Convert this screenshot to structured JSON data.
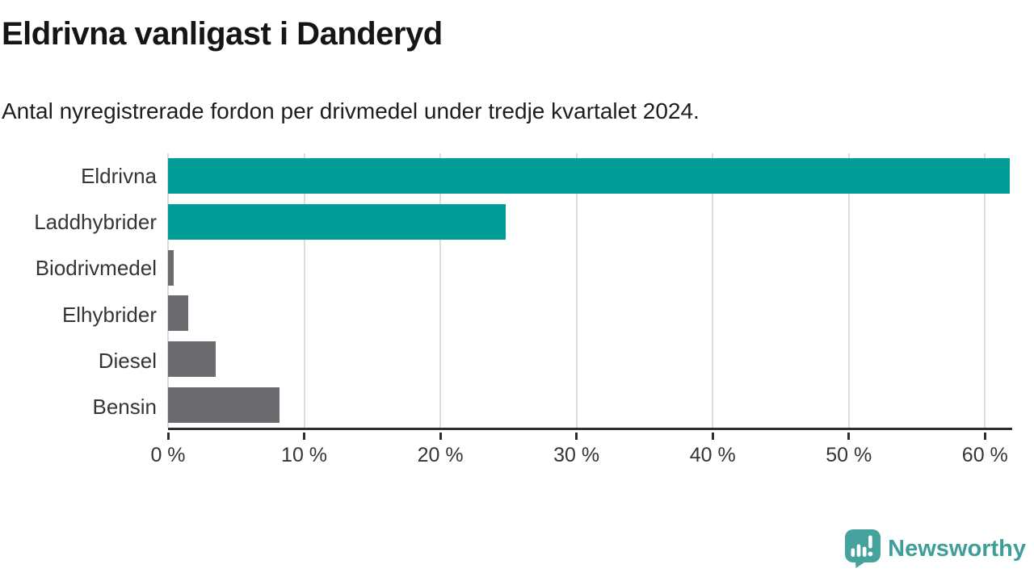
{
  "header": {
    "title": "Eldrivna vanligast i Danderyd",
    "subtitle": "Antal nyregistrerade fordon per drivmedel under tredje kvartalet 2024."
  },
  "chart_data": {
    "type": "bar",
    "orientation": "horizontal",
    "title": "Eldrivna vanligast i Danderyd",
    "subtitle": "Antal nyregistrerade fordon per drivmedel under tredje kvartalet 2024.",
    "categories": [
      "Eldrivna",
      "Laddhybrider",
      "Biodrivmedel",
      "Elhybrider",
      "Diesel",
      "Bensin"
    ],
    "values": [
      61.8,
      24.8,
      0.4,
      1.5,
      3.5,
      8.2
    ],
    "unit": "%",
    "xlim": [
      0,
      62
    ],
    "ticks": [
      {
        "v": 0,
        "label": "0 %"
      },
      {
        "v": 10,
        "label": "10 %"
      },
      {
        "v": 20,
        "label": "20 %"
      },
      {
        "v": 30,
        "label": "30 %"
      },
      {
        "v": 40,
        "label": "40 %"
      },
      {
        "v": 50,
        "label": "50 %"
      },
      {
        "v": 60,
        "label": "60 %"
      }
    ],
    "bar_colors": [
      "#009e97",
      "#009e97",
      "#6b6b6f",
      "#6b6b6f",
      "#6b6b6f",
      "#6b6b6f"
    ],
    "grid": "vertical",
    "legend": "none"
  },
  "colors": {
    "accent_teal": "#009e97",
    "muted_gray": "#6b6b6f",
    "axis": "#2d2d2d",
    "gridline": "#dcdcdc",
    "brand_teal": "#46a29d"
  },
  "footer": {
    "brand": "Newsworthy",
    "logo_icon": "newsworthy-speech-bubble-bar-chart-icon"
  }
}
